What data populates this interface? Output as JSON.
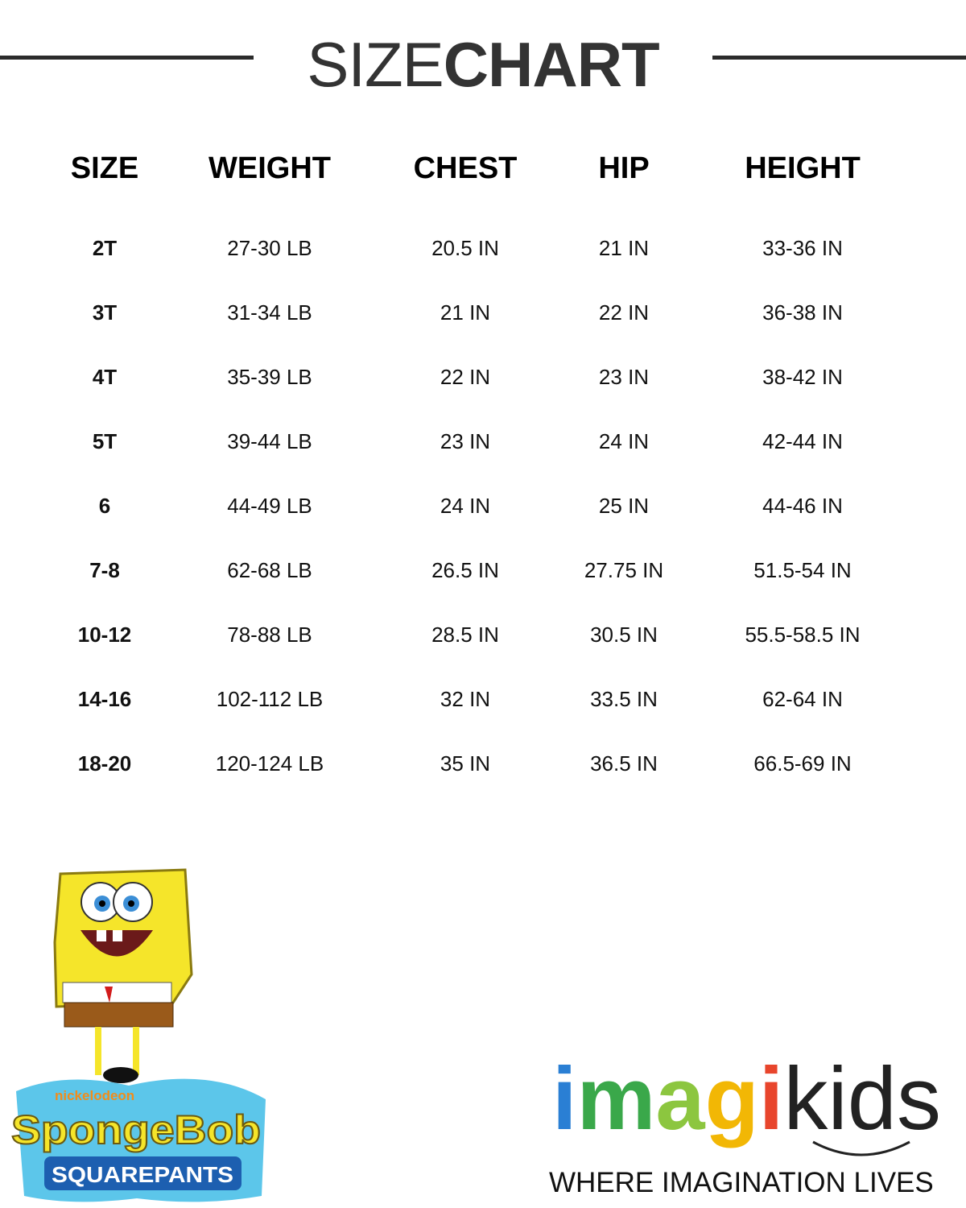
{
  "title": {
    "light": "SIZE",
    "bold": "CHART"
  },
  "table": {
    "headers": [
      "SIZE",
      "WEIGHT",
      "CHEST",
      "HIP",
      "HEIGHT"
    ],
    "rows": [
      [
        "2T",
        "27-30 LB",
        "20.5 IN",
        "21 IN",
        "33-36 IN"
      ],
      [
        "3T",
        "31-34 LB",
        "21 IN",
        "22 IN",
        "36-38 IN"
      ],
      [
        "4T",
        "35-39 LB",
        "22 IN",
        "23 IN",
        "38-42 IN"
      ],
      [
        "5T",
        "39-44 LB",
        "23 IN",
        "24 IN",
        "42-44 IN"
      ],
      [
        "6",
        "44-49 LB",
        "24 IN",
        "25 IN",
        "44-46 IN"
      ],
      [
        "7-8",
        "62-68 LB",
        "26.5 IN",
        "27.75 IN",
        "51.5-54 IN"
      ],
      [
        "10-12",
        "78-88 LB",
        "28.5 IN",
        "30.5 IN",
        "55.5-58.5 IN"
      ],
      [
        "14-16",
        "102-112 LB",
        "32 IN",
        "33.5 IN",
        "62-64 IN"
      ],
      [
        "18-20",
        "120-124 LB",
        "35 IN",
        "36.5 IN",
        "66.5-69 IN"
      ]
    ]
  },
  "logos": {
    "spongebob": {
      "brand": "nickelodeon",
      "name": "SpongeBob",
      "sub": "SQUAREPANTS"
    },
    "imagikids": {
      "letters": [
        {
          "ch": "i",
          "color": "#2a7fd4"
        },
        {
          "ch": "m",
          "color": "#3aa84a"
        },
        {
          "ch": "a",
          "color": "#8cc63f"
        },
        {
          "ch": "g",
          "color": "#f2b705"
        },
        {
          "ch": "i",
          "color": "#e8452c"
        }
      ],
      "kids": "kids",
      "tagline": "WHERE IMAGINATION LIVES"
    }
  }
}
